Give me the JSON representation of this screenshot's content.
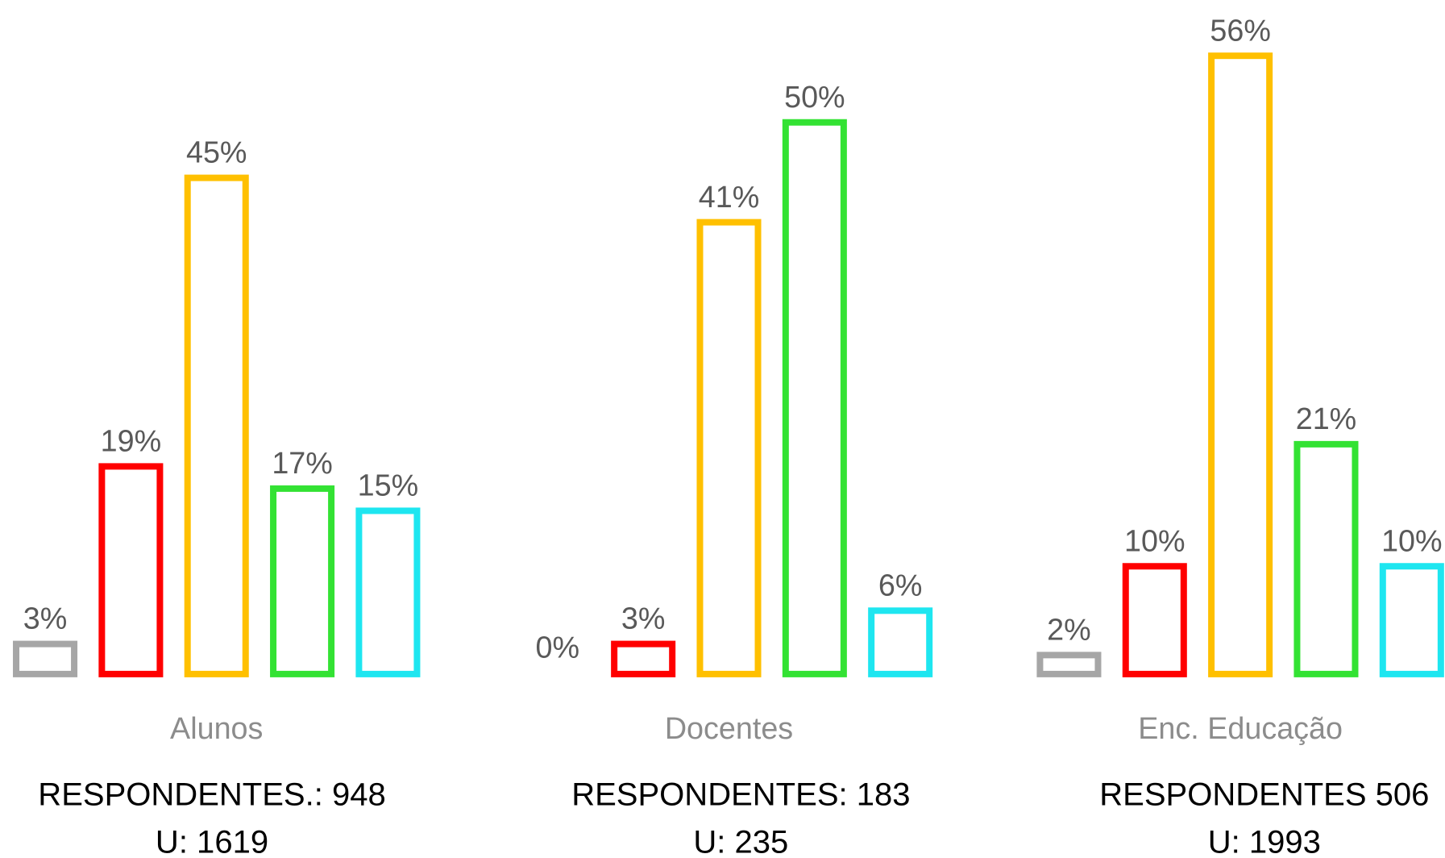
{
  "chart_data": {
    "type": "bar",
    "categories": [
      "Alunos",
      "Docentes",
      "Enc. Educação"
    ],
    "series": [
      {
        "color": "#a6a6a6",
        "values": [
          3,
          0,
          2
        ],
        "value_labels": [
          "3%",
          "0%",
          "2%"
        ]
      },
      {
        "color": "#ff0000",
        "values": [
          19,
          3,
          10
        ],
        "value_labels": [
          "19%",
          "3%",
          "10%"
        ]
      },
      {
        "color": "#ffc000",
        "values": [
          45,
          41,
          56
        ],
        "value_labels": [
          "45%",
          "41%",
          "56%"
        ]
      },
      {
        "color": "#33e233",
        "values": [
          17,
          50,
          21
        ],
        "value_labels": [
          "17%",
          "50%",
          "21%"
        ]
      },
      {
        "color": "#1ee6f0",
        "values": [
          15,
          6,
          10
        ],
        "value_labels": [
          "15%",
          "6%",
          "10%"
        ]
      }
    ],
    "category_notes": [
      [
        "RESPONDENTES.: 948",
        "U: 1619"
      ],
      [
        "RESPONDENTES: 183",
        "U: 235"
      ],
      [
        "RESPONDENTES 506",
        "U: 1993"
      ]
    ]
  }
}
